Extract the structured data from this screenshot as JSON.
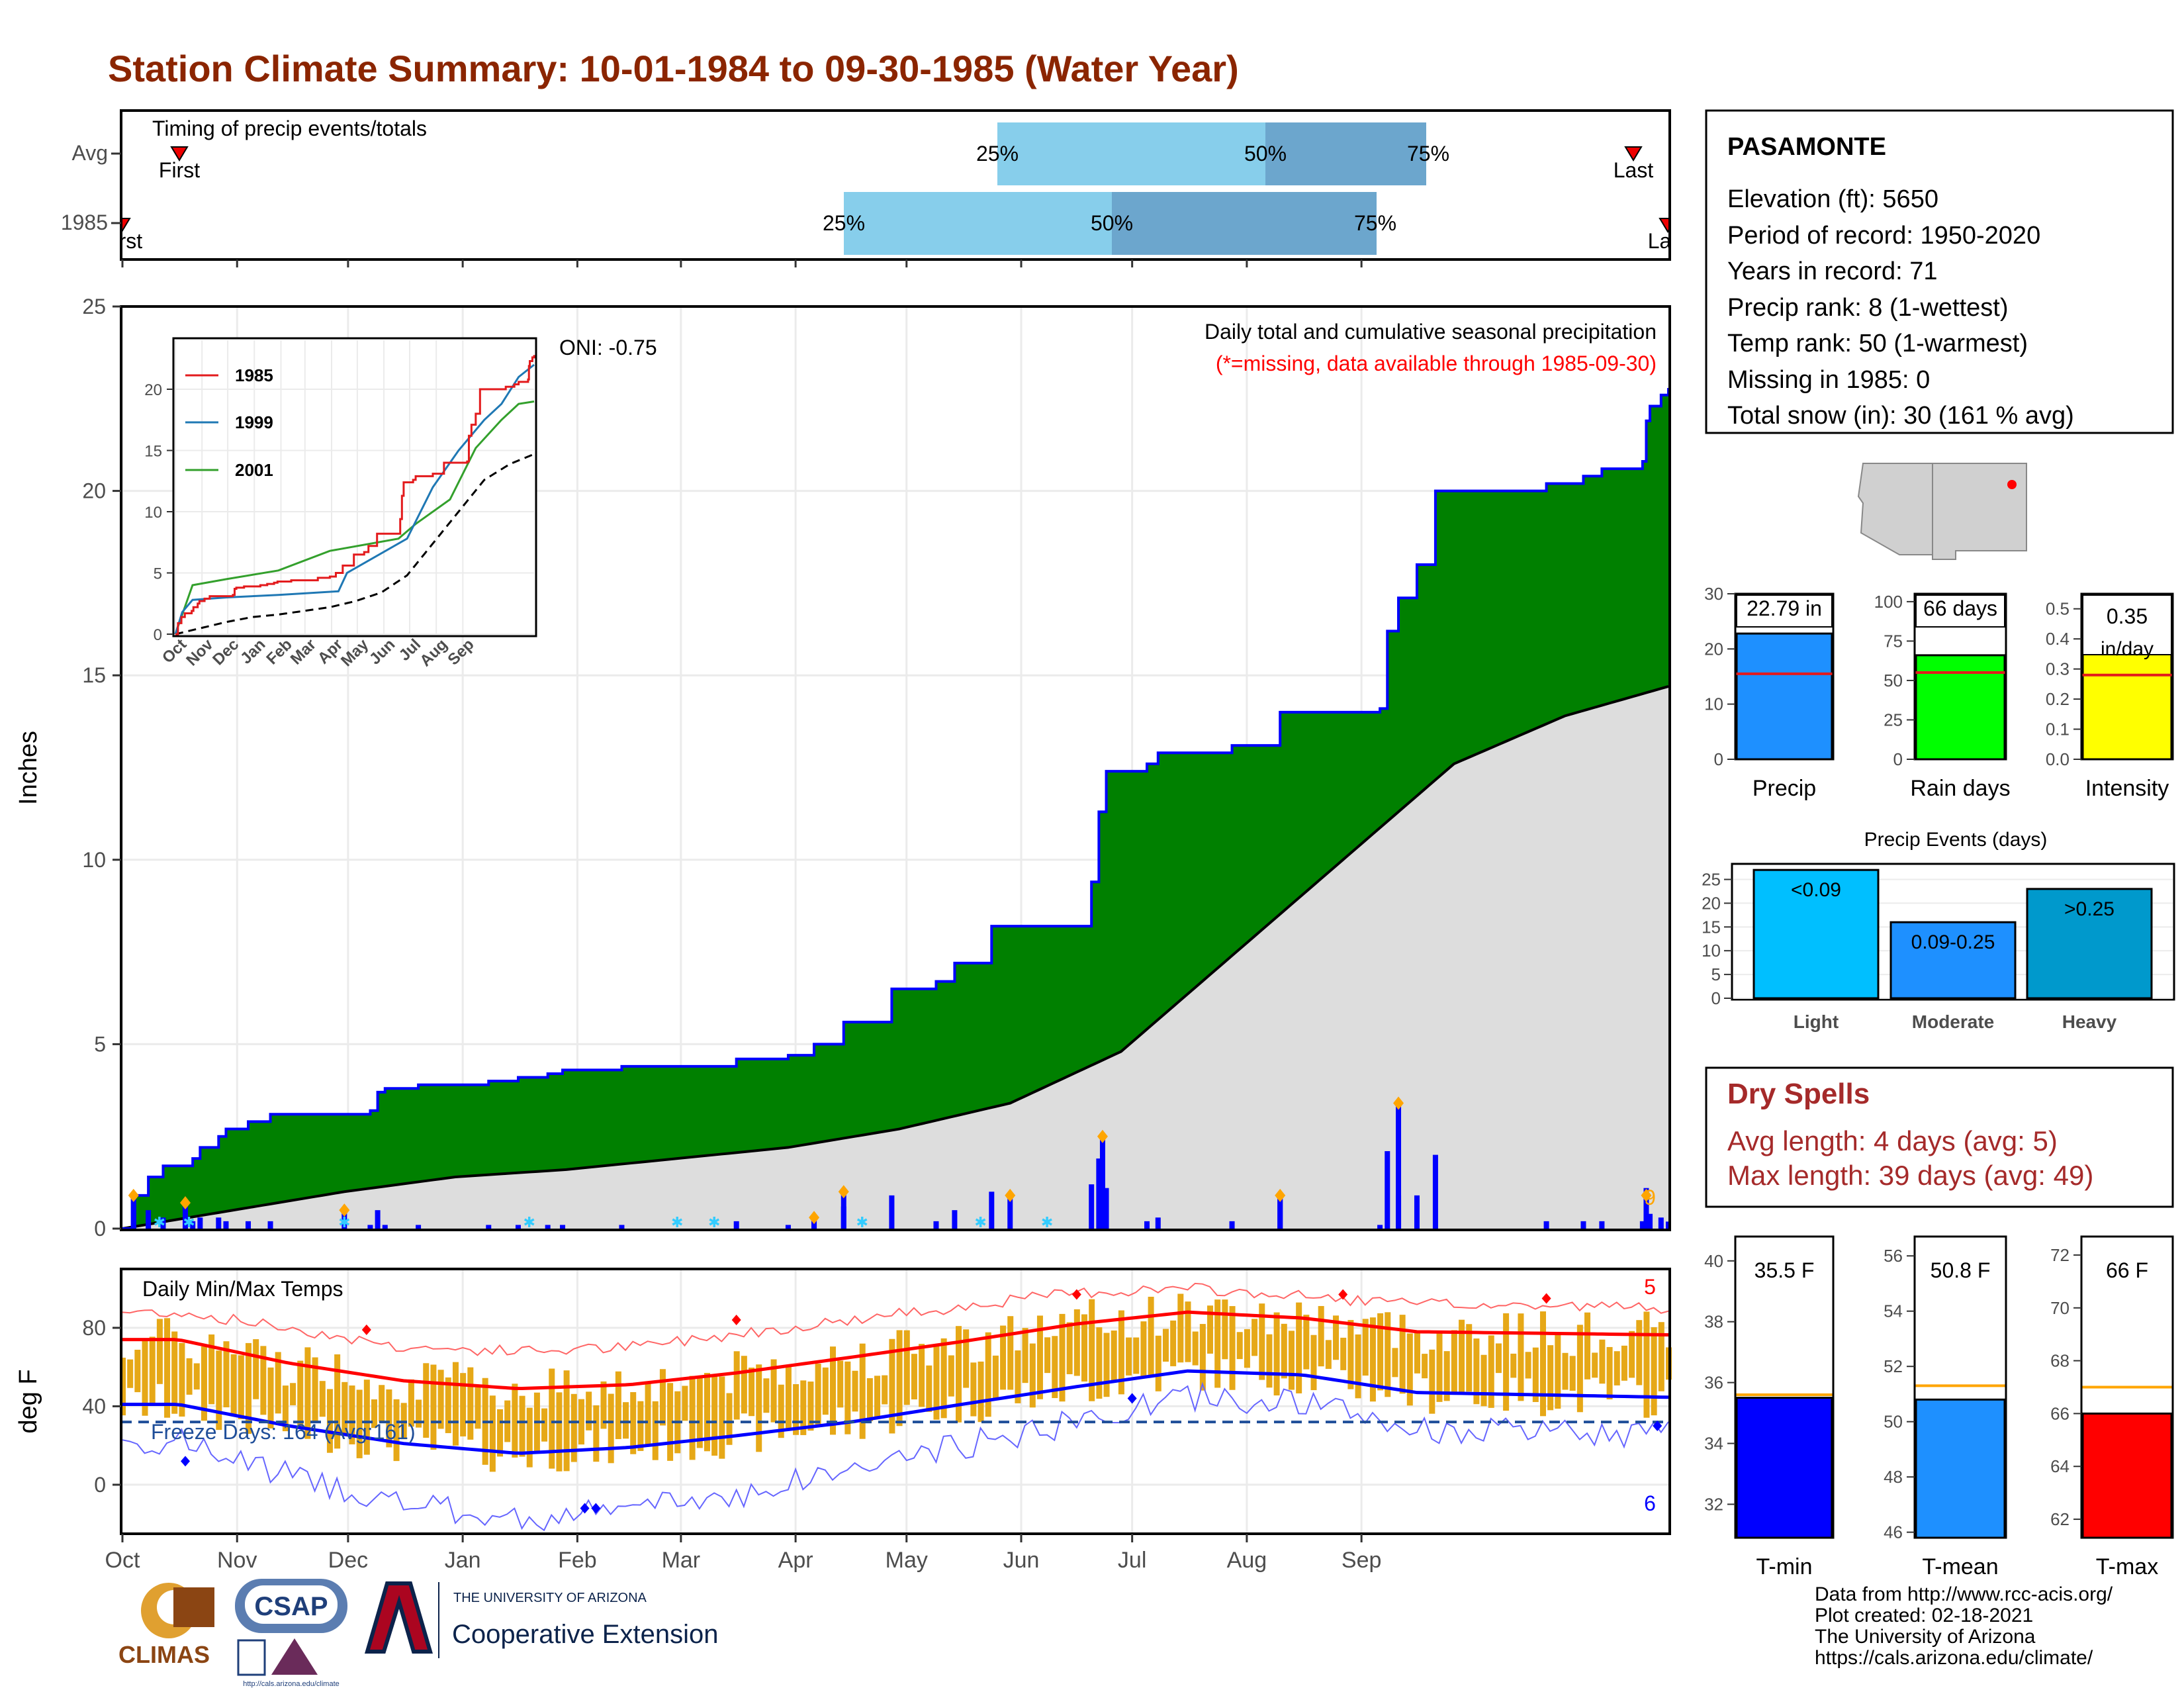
{
  "title": "Station Climate Summary: 10-01-1984 to 09-30-1985 (Water Year)",
  "colors": {
    "title": "#8B2500",
    "green": "#008000",
    "blue": "#0000FF",
    "gray_fill": "#DDDDDD",
    "light_blue_bar": "#87CEEB",
    "mid_blue_bar": "#6CA6CD",
    "gold": "#E6A817",
    "red": "#FF0000",
    "orange": "#FFA500",
    "dry_spell": "#A52A2A"
  },
  "timing": {
    "label": "Timing of precip events/totals",
    "rows": [
      "Avg",
      "1985"
    ],
    "avg": {
      "first": "First",
      "last": "Last",
      "p25": "25%",
      "p50": "50%",
      "p75": "75%"
    },
    "y1985": {
      "first": "First",
      "last": "Last",
      "p25": "25%",
      "p50": "50%",
      "p75": "75%"
    }
  },
  "main": {
    "ylabel": "Inches",
    "yticks": [
      "0",
      "5",
      "10",
      "15",
      "20",
      "25"
    ],
    "subtitle": "Daily total and cumulative seasonal precipitation",
    "subtitle2": "(*=missing, data available through 1985-09-30)",
    "oni": "ONI: -0.75",
    "count_label": "9"
  },
  "inset": {
    "yticks": [
      "0",
      "5",
      "10",
      "15",
      "20"
    ],
    "xticks": [
      "Oct",
      "Nov",
      "Dec",
      "Jan",
      "Feb",
      "Mar",
      "Apr",
      "May",
      "Jun",
      "Jul",
      "Aug",
      "Sep"
    ],
    "legend": [
      "1985",
      "1999",
      "2001"
    ]
  },
  "temps": {
    "label": "Daily Min/Max Temps",
    "ylabel": "deg F",
    "yticks": [
      "0",
      "40",
      "80"
    ],
    "freeze": "Freeze Days: 164 (Avg:161)",
    "max_count": "5",
    "min_count": "6"
  },
  "months": [
    "Oct",
    "Nov",
    "Dec",
    "Jan",
    "Feb",
    "Mar",
    "Apr",
    "May",
    "Jun",
    "Jul",
    "Aug",
    "Sep"
  ],
  "station": {
    "name": "PASAMONTE",
    "lines": [
      "Elevation (ft): 5650",
      "Period of record: 1950-2020",
      "Years in record: 71",
      "Precip rank: 8 (1-wettest)",
      "Temp rank: 50 (1-warmest)",
      "Missing in 1985: 0",
      "Total snow (in): 30 (161 % avg)"
    ]
  },
  "small_bars": [
    {
      "name": "Precip",
      "label": "22.79 in",
      "yticks": [
        "0",
        "10",
        "20",
        "30"
      ],
      "color": "#1E90FF"
    },
    {
      "name": "Rain days",
      "label": "66 days",
      "yticks": [
        "0",
        "25",
        "50",
        "75",
        "100"
      ],
      "color": "#00FF00"
    },
    {
      "name": "Intensity",
      "label": "0.35",
      "label2": "in/day",
      "yticks": [
        "0.0",
        "0.1",
        "0.2",
        "0.3",
        "0.4",
        "0.5"
      ],
      "color": "#FFFF00"
    }
  ],
  "events": {
    "title": "Precip Events (days)",
    "yticks": [
      "0",
      "5",
      "10",
      "15",
      "20",
      "25"
    ],
    "bars": [
      {
        "name": "Light",
        "label": "<0.09",
        "color": "#00BFFF"
      },
      {
        "name": "Moderate",
        "label": "0.09-0.25",
        "color": "#1E90FF"
      },
      {
        "name": "Heavy",
        "label": ">0.25",
        "color": "#0099CC"
      }
    ]
  },
  "dry": {
    "title": "Dry Spells",
    "avg": "Avg length: 4 days (avg: 5)",
    "max": "Max length: 39 days (avg: 49)"
  },
  "temp_bars": [
    {
      "name": "T-min",
      "label": "35.5 F",
      "yticks": [
        "32",
        "34",
        "36",
        "38",
        "40"
      ],
      "color": "#0000FF"
    },
    {
      "name": "T-mean",
      "label": "50.8 F",
      "yticks": [
        "46",
        "48",
        "50",
        "52",
        "54",
        "56"
      ],
      "color": "#1E90FF"
    },
    {
      "name": "T-max",
      "label": "66 F",
      "yticks": [
        "62",
        "64",
        "66",
        "68",
        "70",
        "72"
      ],
      "color": "#FF0000"
    }
  ],
  "footer": {
    "lines": [
      "Data from http://www.rcc-acis.org/",
      "Plot created: 02-18-2021",
      "The University of Arizona",
      "https://cals.arizona.edu/climate/"
    ],
    "logo1": "CLIMAS",
    "logo2": "CSAP",
    "logo2_url": "http://cals.arizona.edu/climate",
    "ua_small": "THE UNIVERSITY OF ARIZONA",
    "ua_big": "Cooperative Extension"
  },
  "chart_data": [
    {
      "type": "area",
      "title": "Daily total and cumulative seasonal precipitation",
      "ylabel": "Inches",
      "ylim": [
        0,
        25
      ],
      "x": [
        "Oct",
        "Nov",
        "Dec",
        "Jan",
        "Feb",
        "Mar",
        "Apr",
        "May",
        "Jun",
        "Jul",
        "Aug",
        "Sep"
      ],
      "series": [
        {
          "name": "1985",
          "points": [
            [
              0,
              0.0
            ],
            [
              3,
              0.9
            ],
            [
              7,
              1.4
            ],
            [
              11,
              1.7
            ],
            [
              19,
              1.9
            ],
            [
              21,
              2.2
            ],
            [
              26,
              2.5
            ],
            [
              28,
              2.7
            ],
            [
              34,
              2.9
            ],
            [
              40,
              3.1
            ],
            [
              67,
              3.2
            ],
            [
              69,
              3.7
            ],
            [
              71,
              3.8
            ],
            [
              80,
              3.9
            ],
            [
              99,
              4.0
            ],
            [
              107,
              4.1
            ],
            [
              115,
              4.2
            ],
            [
              119,
              4.3
            ],
            [
              135,
              4.4
            ],
            [
              166,
              4.4
            ],
            [
              166,
              4.6
            ],
            [
              180,
              4.7
            ],
            [
              187,
              5.0
            ],
            [
              195,
              5.6
            ],
            [
              208,
              6.5
            ],
            [
              220,
              6.7
            ],
            [
              225,
              7.2
            ],
            [
              235,
              8.2
            ],
            [
              260,
              8.2
            ],
            [
              262,
              9.4
            ],
            [
              264,
              11.3
            ],
            [
              266,
              12.4
            ],
            [
              277,
              12.6
            ],
            [
              280,
              12.9
            ],
            [
              300,
              13.1
            ],
            [
              310,
              13.1
            ],
            [
              313,
              14.0
            ],
            [
              340,
              14.1
            ],
            [
              342,
              16.2
            ],
            [
              345,
              17.1
            ],
            [
              350,
              18.0
            ],
            [
              355,
              20.0
            ],
            [
              385,
              20.2
            ],
            [
              395,
              20.4
            ],
            [
              400,
              20.6
            ],
            [
              411,
              20.8
            ],
            [
              412,
              21.9
            ],
            [
              413,
              22.3
            ],
            [
              416,
              22.6
            ],
            [
              418,
              22.79
            ]
          ]
        },
        {
          "name": "Average",
          "points": [
            [
              0,
              0.0
            ],
            [
              30,
              0.5
            ],
            [
              60,
              1.0
            ],
            [
              90,
              1.4
            ],
            [
              120,
              1.6
            ],
            [
              150,
              1.9
            ],
            [
              180,
              2.2
            ],
            [
              210,
              2.7
            ],
            [
              240,
              3.4
            ],
            [
              270,
              4.8
            ],
            [
              300,
              7.4
            ],
            [
              330,
              10.0
            ],
            [
              360,
              12.6
            ],
            [
              390,
              13.9
            ],
            [
              418,
              14.7
            ]
          ]
        }
      ],
      "daily_peaks": [
        [
          3,
          0.9
        ],
        [
          17,
          0.7
        ],
        [
          60,
          0.5
        ],
        [
          187,
          0.3
        ],
        [
          195,
          1.0
        ],
        [
          240,
          0.9
        ],
        [
          265,
          2.5
        ],
        [
          313,
          0.9
        ],
        [
          345,
          3.4
        ],
        [
          412,
          0.9
        ]
      ]
    },
    {
      "type": "line",
      "title": "Daily Min/Max Temps",
      "ylabel": "deg F",
      "x": [
        "Oct",
        "Nov",
        "Dec",
        "Jan",
        "Feb",
        "Mar",
        "Apr",
        "May",
        "Jun",
        "Jul",
        "Aug",
        "Sep"
      ],
      "series": [
        {
          "name": "Avg max",
          "values": [
            74,
            62,
            53,
            49,
            51,
            57,
            65,
            73,
            82,
            88,
            85,
            78
          ]
        },
        {
          "name": "Avg min",
          "values": [
            41,
            30,
            21,
            16,
            19,
            25,
            32,
            41,
            50,
            58,
            56,
            47
          ]
        },
        {
          "name": "Record max",
          "values": [
            88,
            80,
            70,
            68,
            70,
            77,
            84,
            91,
            98,
            100,
            96,
            92
          ]
        },
        {
          "name": "Record min",
          "values": [
            22,
            5,
            -10,
            -18,
            -12,
            -5,
            8,
            20,
            32,
            45,
            42,
            28
          ]
        }
      ],
      "freeze_line": 32,
      "ylim": [
        -25,
        110
      ]
    },
    {
      "type": "bar",
      "title": "Precip Events (days)",
      "categories": [
        "Light",
        "Moderate",
        "Heavy"
      ],
      "values": [
        27,
        16,
        23
      ],
      "ylim": [
        0,
        28
      ]
    },
    {
      "type": "bar",
      "categories": [
        "Precip",
        "Rain days",
        "Intensity",
        "T-min",
        "T-mean",
        "T-max"
      ],
      "values": [
        22.79,
        66,
        0.35,
        35.5,
        50.8,
        66
      ],
      "averages": [
        15.5,
        55,
        0.28,
        35.6,
        51.3,
        67
      ]
    }
  ]
}
